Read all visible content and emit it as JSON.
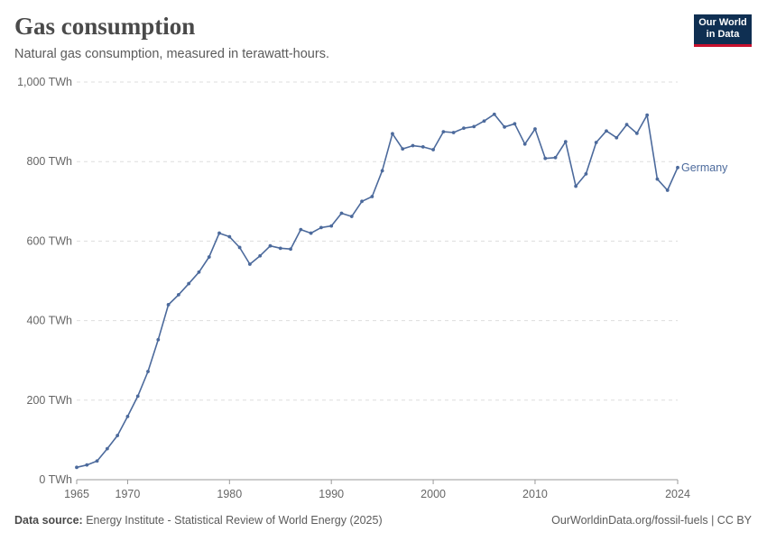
{
  "header": {
    "title": "Gas consumption",
    "subtitle": "Natural gas consumption, measured in terawatt-hours."
  },
  "logo": {
    "line1": "Our World",
    "line2": "in Data"
  },
  "footer": {
    "source_label": "Data source:",
    "source_text": "Energy Institute - Statistical Review of World Energy (2025)",
    "url_license": "OurWorldinData.org/fossil-fuels | CC BY"
  },
  "colors": {
    "series": "#4c6a9c",
    "grid": "#dddddd",
    "axis": "#999999"
  },
  "chart_data": {
    "type": "line",
    "title": "Gas consumption",
    "ylabel": "",
    "xlabel": "",
    "unit": "TWh",
    "ylim": [
      0,
      1000
    ],
    "xlim": [
      1965,
      2024
    ],
    "y_ticks": [
      {
        "value": 0,
        "label": "0 TWh"
      },
      {
        "value": 200,
        "label": "200 TWh"
      },
      {
        "value": 400,
        "label": "400 TWh"
      },
      {
        "value": 600,
        "label": "600 TWh"
      },
      {
        "value": 800,
        "label": "800 TWh"
      },
      {
        "value": 1000,
        "label": "1,000 TWh"
      }
    ],
    "x_ticks": [
      {
        "value": 1965,
        "label": "1965"
      },
      {
        "value": 1970,
        "label": "1970"
      },
      {
        "value": 1980,
        "label": "1980"
      },
      {
        "value": 1990,
        "label": "1990"
      },
      {
        "value": 2000,
        "label": "2000"
      },
      {
        "value": 2010,
        "label": "2010"
      },
      {
        "value": 2024,
        "label": "2024"
      }
    ],
    "series": [
      {
        "name": "Germany",
        "x": [
          1965,
          1966,
          1967,
          1968,
          1969,
          1970,
          1971,
          1972,
          1973,
          1974,
          1975,
          1976,
          1977,
          1978,
          1979,
          1980,
          1981,
          1982,
          1983,
          1984,
          1985,
          1986,
          1987,
          1988,
          1989,
          1990,
          1991,
          1992,
          1993,
          1994,
          1995,
          1996,
          1997,
          1998,
          1999,
          2000,
          2001,
          2002,
          2003,
          2004,
          2005,
          2006,
          2007,
          2008,
          2009,
          2010,
          2011,
          2012,
          2013,
          2014,
          2015,
          2016,
          2017,
          2018,
          2019,
          2020,
          2021,
          2022,
          2023,
          2024
        ],
        "values": [
          31,
          37,
          47,
          78,
          111,
          159,
          210,
          272,
          352,
          440,
          465,
          493,
          522,
          560,
          620,
          611,
          584,
          542,
          563,
          588,
          582,
          580,
          629,
          620,
          634,
          638,
          670,
          662,
          700,
          712,
          777,
          870,
          832,
          840,
          837,
          830,
          875,
          873,
          884,
          888,
          902,
          919,
          887,
          895,
          844,
          882,
          808,
          810,
          850,
          738,
          769,
          848,
          877,
          860,
          893,
          871,
          917,
          756,
          728,
          785
        ]
      }
    ]
  }
}
